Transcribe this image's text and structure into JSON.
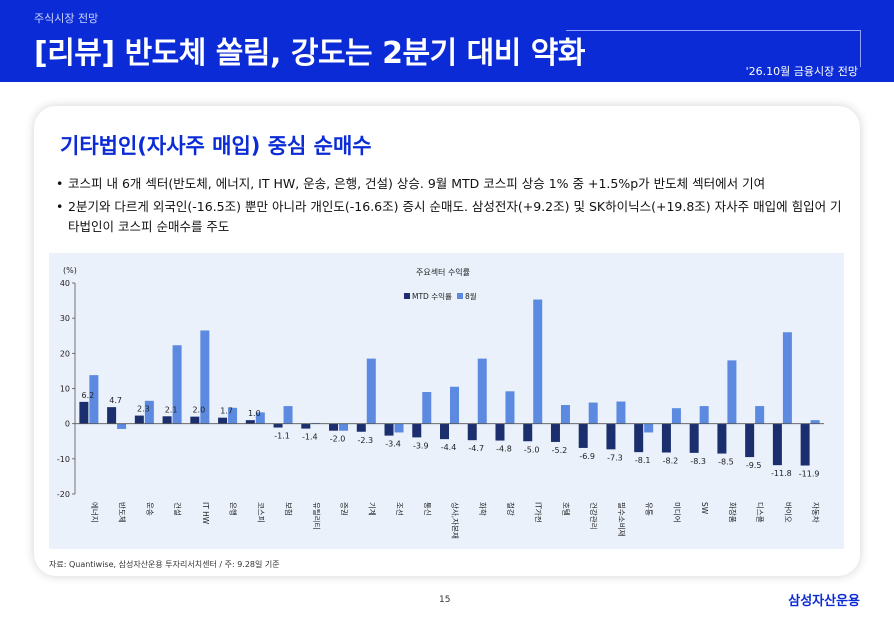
{
  "header": {
    "kicker": "주식시장 전망",
    "title": "[리뷰] 반도체 쏠림, 강도는 2분기 대비 약화",
    "date": "'26.10월 금융시장 전망"
  },
  "section": {
    "subtitle": "기타법인(자사주 매입) 중심 순매수",
    "bullets": [
      "코스피 내 6개 섹터(반도체, 에너지, IT HW, 운송, 은행, 건설) 상승. 9월 MTD 코스피 상승 1% 중 +1.5%p가 반도체 섹터에서 기여",
      "2분기와 다르게 외국인(-16.5조) 뿐만 아니라 개인도(-16.6조) 증시 순매도. 삼성전자(+9.2조) 및 SK하이닉스(+19.8조) 자사주 매입에 힘입어 기타법인이 코스피 순매수를 주도"
    ]
  },
  "chart_data": {
    "type": "bar",
    "title": "주요섹터 수익률",
    "ylabel": "(%)",
    "ylim": [
      -20,
      40
    ],
    "yticks": [
      -20,
      -10,
      0,
      10,
      20,
      30,
      40
    ],
    "grid": false,
    "legend_position": "top-center",
    "categories": [
      "에너지",
      "반도체",
      "운송",
      "건설",
      "IT HW",
      "은행",
      "코스피",
      "보험",
      "유틸리티",
      "증권",
      "기계",
      "조선",
      "통신",
      "상사,자본재",
      "화학",
      "철강",
      "IT가전",
      "호텔",
      "건강관리",
      "필수소비재",
      "유통",
      "미디어",
      "SW",
      "화장품",
      "디스플",
      "바이오",
      "자동차"
    ],
    "series": [
      {
        "name": "MTD 수익률",
        "color": "#1b2f6e",
        "labeled": true,
        "values": [
          6.2,
          4.7,
          2.3,
          2.1,
          2.0,
          1.7,
          1.0,
          -1.1,
          -1.4,
          -2.0,
          -2.3,
          -3.4,
          -3.9,
          -4.4,
          -4.7,
          -4.8,
          -5.0,
          -5.2,
          -6.9,
          -7.3,
          -8.1,
          -8.2,
          -8.3,
          -8.5,
          -9.5,
          -11.8,
          -11.9
        ]
      },
      {
        "name": "8월",
        "color": "#5b8ae0",
        "labeled": false,
        "values": [
          13.8,
          -1.5,
          6.5,
          22.3,
          26.5,
          4.5,
          3.2,
          5.0,
          0.2,
          -2.0,
          18.5,
          -2.5,
          9.0,
          10.5,
          18.5,
          9.2,
          35.3,
          5.3,
          6.0,
          6.3,
          -2.5,
          4.4,
          5.0,
          18.0,
          5.0,
          26.0,
          1.0
        ]
      }
    ]
  },
  "footer": {
    "source": "자료: Quantiwise, 삼성자산운용 투자리서치센터 / 주: 9.28일 기준",
    "page": "15",
    "brand": "삼성자산운용"
  }
}
